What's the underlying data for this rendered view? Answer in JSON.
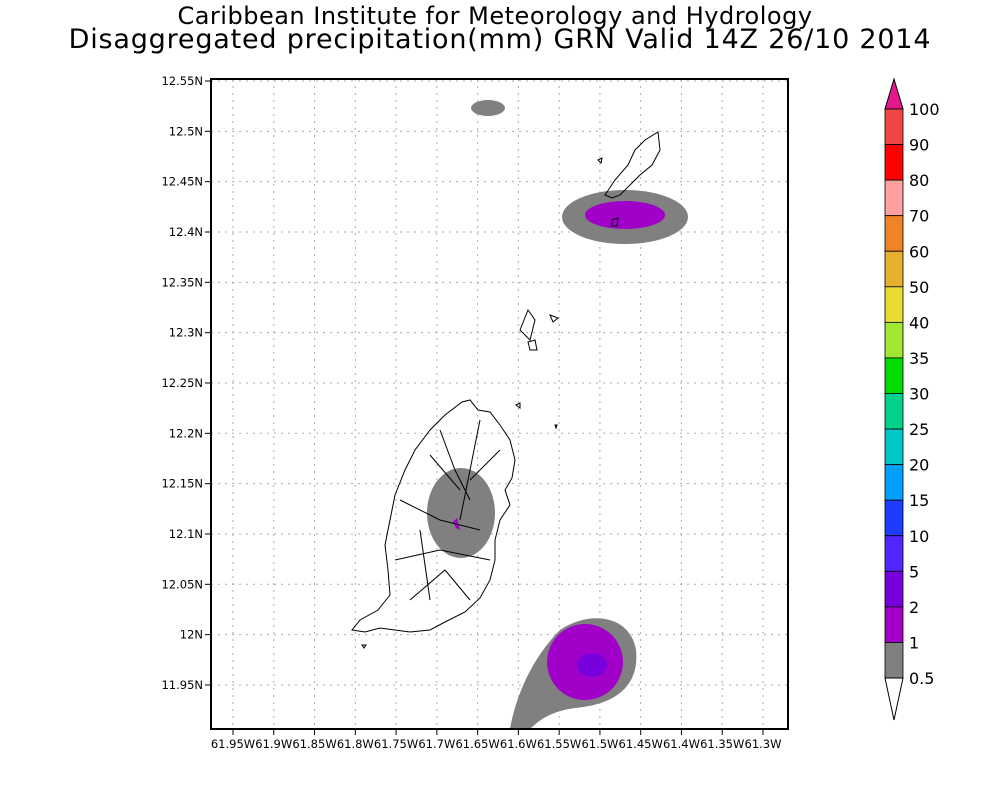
{
  "header": {
    "title": "Caribbean Institute for Meteorology and Hydrology",
    "subtitle": "Disaggregated precipitation(mm) GRN Valid 14Z 26/10 2014"
  },
  "map": {
    "lat_ticks": [
      "12.55N",
      "12.5N",
      "12.45N",
      "12.4N",
      "12.35N",
      "12.3N",
      "12.25N",
      "12.2N",
      "12.15N",
      "12.1N",
      "12.05N",
      "12N",
      "11.95N"
    ],
    "lat_values": [
      12.55,
      12.5,
      12.45,
      12.4,
      12.35,
      12.3,
      12.25,
      12.2,
      12.15,
      12.1,
      12.05,
      12.0,
      11.95
    ],
    "lon_ticks": [
      "61.95W",
      "61.9W",
      "61.85W",
      "61.8W",
      "61.75W",
      "61.7W",
      "61.65W",
      "61.6W",
      "61.55W",
      "61.5W",
      "61.45W",
      "61.4W",
      "61.35W",
      "61.3W"
    ],
    "lon_values": [
      -61.95,
      -61.9,
      -61.85,
      -61.8,
      -61.75,
      -61.7,
      -61.65,
      -61.6,
      -61.55,
      -61.5,
      -61.45,
      -61.4,
      -61.35,
      -61.3
    ]
  },
  "legend": {
    "labels": [
      "100",
      "90",
      "80",
      "70",
      "60",
      "50",
      "40",
      "35",
      "30",
      "25",
      "20",
      "15",
      "10",
      "5",
      "2",
      "1",
      "0.5"
    ],
    "colors": [
      "#f04646",
      "#ff0000",
      "#ffa0a0",
      "#f08228",
      "#e6af2d",
      "#e6dc32",
      "#a0e632",
      "#00dc00",
      "#00d28c",
      "#00c8c8",
      "#00a0ff",
      "#1e3cff",
      "#5028ff",
      "#7800dc",
      "#a000c8",
      "#808080"
    ],
    "over_color": "#e6198c",
    "under_color": "#ffffff"
  }
}
